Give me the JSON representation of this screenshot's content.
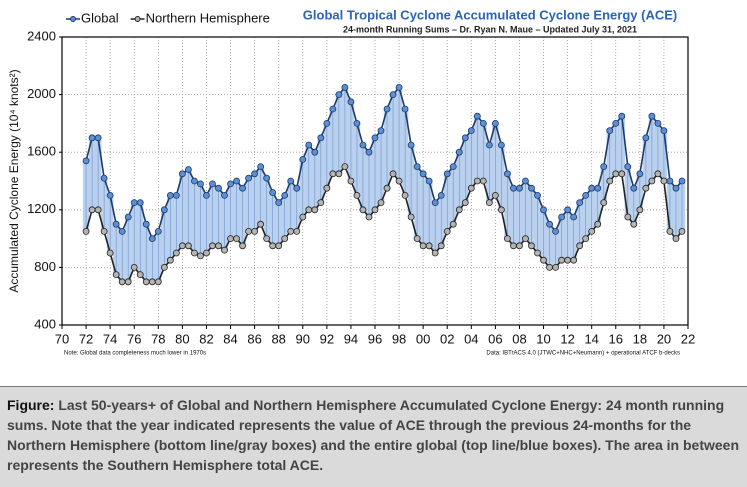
{
  "chart_data": {
    "type": "line",
    "title": "Global Tropical Cyclone Accumulated Cyclone Energy (ACE)",
    "subtitle": "24-month Running Sums – Dr. Ryan N. Maue – Updated July 31, 2021",
    "y_label": "Accumulated Cyclone Energy (10⁴ knots²)",
    "note_left": "Note: Global data completeness much lower in 1970s",
    "note_right": "Data: IBTrACS 4.0 (JTWC+NHC+Neumann) + operational ATCF b-decks",
    "legend": "top-left",
    "grid": true,
    "xlim": [
      1970,
      2022
    ],
    "xticks": [
      {
        "value": 1970,
        "label": "70"
      },
      {
        "value": 1972,
        "label": "72"
      },
      {
        "value": 1974,
        "label": "74"
      },
      {
        "value": 1976,
        "label": "76"
      },
      {
        "value": 1978,
        "label": "78"
      },
      {
        "value": 1980,
        "label": "80"
      },
      {
        "value": 1982,
        "label": "82"
      },
      {
        "value": 1984,
        "label": "84"
      },
      {
        "value": 1986,
        "label": "86"
      },
      {
        "value": 1988,
        "label": "88"
      },
      {
        "value": 1990,
        "label": "90"
      },
      {
        "value": 1992,
        "label": "92"
      },
      {
        "value": 1994,
        "label": "94"
      },
      {
        "value": 1996,
        "label": "96"
      },
      {
        "value": 1998,
        "label": "98"
      },
      {
        "value": 2000,
        "label": "00"
      },
      {
        "value": 2002,
        "label": "02"
      },
      {
        "value": 2004,
        "label": "04"
      },
      {
        "value": 2006,
        "label": "06"
      },
      {
        "value": 2008,
        "label": "08"
      },
      {
        "value": 2010,
        "label": "10"
      },
      {
        "value": 2012,
        "label": "12"
      },
      {
        "value": 2014,
        "label": "14"
      },
      {
        "value": 2016,
        "label": "16"
      },
      {
        "value": 2018,
        "label": "18"
      },
      {
        "value": 2020,
        "label": "20"
      },
      {
        "value": 2022,
        "label": "22"
      }
    ],
    "ylim": [
      400,
      2400
    ],
    "yticks": [
      400,
      800,
      1200,
      1600,
      2000,
      2400
    ],
    "x": [
      1972,
      1972.5,
      1973,
      1973.5,
      1974,
      1974.5,
      1975,
      1975.5,
      1976,
      1976.5,
      1977,
      1977.5,
      1978,
      1978.5,
      1979,
      1979.5,
      1980,
      1980.5,
      1981,
      1981.5,
      1982,
      1982.5,
      1983,
      1983.5,
      1984,
      1984.5,
      1985,
      1985.5,
      1986,
      1986.5,
      1987,
      1987.5,
      1988,
      1988.5,
      1989,
      1989.5,
      1990,
      1990.5,
      1991,
      1991.5,
      1992,
      1992.5,
      1993,
      1993.5,
      1994,
      1994.5,
      1995,
      1995.5,
      1996,
      1996.5,
      1997,
      1997.5,
      1998,
      1998.5,
      1999,
      1999.5,
      2000,
      2000.5,
      2001,
      2001.5,
      2002,
      2002.5,
      2003,
      2003.5,
      2004,
      2004.5,
      2005,
      2005.5,
      2006,
      2006.5,
      2007,
      2007.5,
      2008,
      2008.5,
      2009,
      2009.5,
      2010,
      2010.5,
      2011,
      2011.5,
      2012,
      2012.5,
      2013,
      2013.5,
      2014,
      2014.5,
      2015,
      2015.5,
      2016,
      2016.5,
      2017,
      2017.5,
      2018,
      2018.5,
      2019,
      2019.5,
      2020,
      2020.5,
      2021,
      2021.5
    ],
    "series": [
      {
        "name": "Global",
        "color": "#5b8fd6",
        "line_color": "#1f3a66",
        "values": [
          1540,
          1700,
          1700,
          1420,
          1300,
          1100,
          1050,
          1150,
          1250,
          1250,
          1100,
          1000,
          1050,
          1200,
          1300,
          1300,
          1450,
          1480,
          1400,
          1380,
          1300,
          1380,
          1350,
          1300,
          1380,
          1400,
          1350,
          1420,
          1450,
          1500,
          1420,
          1320,
          1250,
          1300,
          1400,
          1350,
          1550,
          1650,
          1600,
          1700,
          1800,
          1900,
          2000,
          2050,
          1950,
          1800,
          1650,
          1600,
          1700,
          1750,
          1900,
          2000,
          2050,
          1900,
          1650,
          1500,
          1450,
          1400,
          1250,
          1300,
          1450,
          1500,
          1600,
          1700,
          1750,
          1850,
          1800,
          1650,
          1800,
          1650,
          1450,
          1350,
          1350,
          1400,
          1350,
          1300,
          1200,
          1100,
          1050,
          1150,
          1200,
          1150,
          1250,
          1300,
          1350,
          1350,
          1500,
          1750,
          1800,
          1850,
          1500,
          1350,
          1450,
          1700,
          1850,
          1800,
          1750,
          1400,
          1350,
          1400
        ]
      },
      {
        "name": "Northern Hemisphere",
        "color": "#b4b4b4",
        "line_color": "#222222",
        "values": [
          1050,
          1200,
          1200,
          1050,
          900,
          750,
          700,
          700,
          800,
          750,
          700,
          700,
          700,
          800,
          850,
          900,
          950,
          950,
          900,
          880,
          900,
          950,
          950,
          920,
          1000,
          1000,
          950,
          1050,
          1050,
          1100,
          1000,
          950,
          950,
          1000,
          1050,
          1050,
          1150,
          1200,
          1200,
          1250,
          1350,
          1450,
          1450,
          1500,
          1400,
          1300,
          1200,
          1150,
          1200,
          1250,
          1350,
          1450,
          1400,
          1300,
          1150,
          1000,
          950,
          950,
          900,
          950,
          1050,
          1100,
          1200,
          1250,
          1350,
          1400,
          1400,
          1250,
          1300,
          1200,
          1000,
          950,
          950,
          1000,
          950,
          900,
          850,
          800,
          800,
          850,
          850,
          850,
          950,
          1000,
          1050,
          1100,
          1250,
          1400,
          1450,
          1450,
          1150,
          1100,
          1200,
          1350,
          1400,
          1450,
          1400,
          1050,
          1000,
          1050
        ]
      }
    ]
  },
  "caption": {
    "label": "Figure:",
    "text": "Last 50-years+ of Global and Northern Hemisphere Accumulated Cyclone Energy: 24 month running sums. Note that the year indicated represents the value of ACE through the previous 24-months for the Northern Hemisphere (bottom line/gray boxes) and the entire global (top line/blue boxes). The area in between represents the Southern Hemisphere total ACE."
  }
}
